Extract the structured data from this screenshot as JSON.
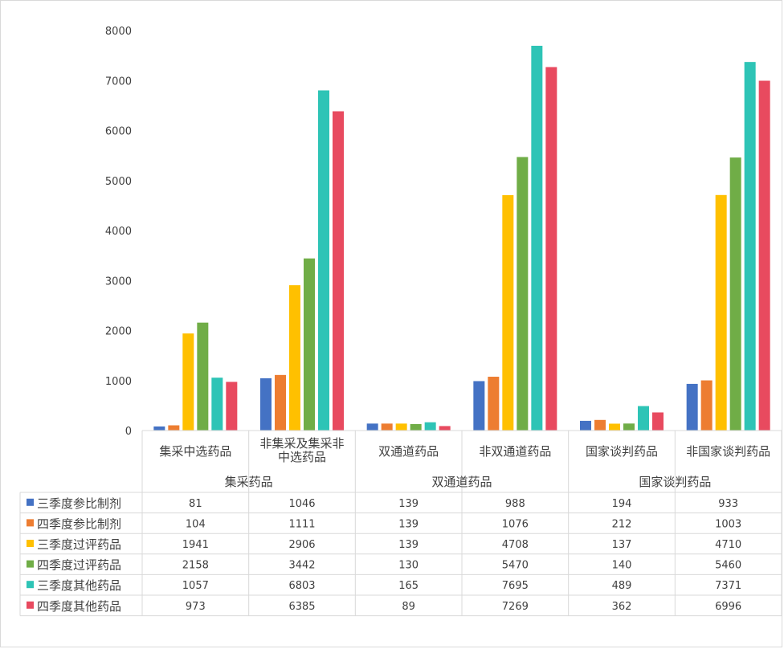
{
  "chart_data": {
    "type": "bar",
    "ylim": [
      0,
      8000
    ],
    "y_ticks": [
      0,
      1000,
      2000,
      3000,
      4000,
      5000,
      6000,
      7000,
      8000
    ],
    "categories": [
      [
        "集采中选药品"
      ],
      [
        "非集采及集采非",
        "中选药品"
      ],
      [
        "双通道药品"
      ],
      [
        "非双通道药品"
      ],
      [
        "国家谈判药品"
      ],
      [
        "非国家谈判药品"
      ]
    ],
    "groups": [
      "集采药品",
      "双通道药品",
      "国家谈判药品"
    ],
    "grid": false,
    "legend_placement": "data-table",
    "series": [
      {
        "name": "三季度参比制剂",
        "color": "#4472C4",
        "values": [
          81,
          1046,
          139,
          988,
          194,
          933
        ]
      },
      {
        "name": "四季度参比制剂",
        "color": "#ED7D31",
        "values": [
          104,
          1111,
          139,
          1076,
          212,
          1003
        ]
      },
      {
        "name": "三季度过评药品",
        "color": "#FFC000",
        "values": [
          1941,
          2906,
          139,
          4708,
          137,
          4710
        ]
      },
      {
        "name": "四季度过评药品",
        "color": "#70AD47",
        "values": [
          2158,
          3442,
          130,
          5470,
          140,
          5460
        ]
      },
      {
        "name": "三季度其他药品",
        "color": "#2EC4B6",
        "values": [
          1057,
          6803,
          165,
          7695,
          489,
          7371
        ]
      },
      {
        "name": "四季度其他药品",
        "color": "#E84A5F",
        "values": [
          973,
          6385,
          89,
          7269,
          362,
          6996
        ]
      }
    ]
  }
}
